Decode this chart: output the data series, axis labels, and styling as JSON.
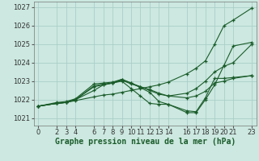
{
  "xlabel": "Graphe pression niveau de la mer (hPa)",
  "background_color": "#cce8e0",
  "grid_color": "#aacfc8",
  "line_color": "#1a5c2a",
  "xlim": [
    -0.5,
    23.5
  ],
  "ylim": [
    1020.6,
    1027.3
  ],
  "yticks": [
    1021,
    1022,
    1023,
    1024,
    1025,
    1026,
    1027
  ],
  "xticks": [
    0,
    2,
    3,
    4,
    6,
    7,
    8,
    9,
    10,
    11,
    12,
    13,
    14,
    16,
    17,
    18,
    19,
    20,
    21,
    23
  ],
  "lines": [
    {
      "x": [
        0,
        2,
        3,
        4,
        6,
        7,
        8,
        9,
        10,
        11,
        12,
        13,
        14,
        16,
        17,
        18,
        19,
        20,
        21,
        23
      ],
      "y": [
        1021.65,
        1021.8,
        1021.85,
        1021.95,
        1022.15,
        1022.25,
        1022.3,
        1022.4,
        1022.5,
        1022.6,
        1022.7,
        1022.8,
        1022.95,
        1023.4,
        1023.7,
        1024.1,
        1025.0,
        1026.0,
        1026.3,
        1026.95
      ]
    },
    {
      "x": [
        0,
        2,
        3,
        4,
        6,
        7,
        8,
        9,
        10,
        11,
        12,
        13,
        14,
        16,
        17,
        18,
        19,
        20,
        21,
        23
      ],
      "y": [
        1021.65,
        1021.8,
        1021.85,
        1022.0,
        1022.5,
        1022.8,
        1022.9,
        1023.1,
        1022.9,
        1022.7,
        1022.5,
        1022.3,
        1022.2,
        1022.35,
        1022.6,
        1023.0,
        1023.5,
        1023.8,
        1024.0,
        1025.0
      ]
    },
    {
      "x": [
        0,
        2,
        3,
        4,
        6,
        7,
        8,
        9,
        10,
        11,
        12,
        13,
        14,
        16,
        17,
        18,
        19,
        20,
        21,
        23
      ],
      "y": [
        1021.65,
        1021.8,
        1021.85,
        1022.0,
        1022.7,
        1022.8,
        1022.9,
        1023.05,
        1022.85,
        1022.7,
        1022.55,
        1022.35,
        1022.2,
        1022.1,
        1022.2,
        1022.45,
        1022.9,
        1023.0,
        1023.15,
        1023.3
      ]
    },
    {
      "x": [
        0,
        2,
        3,
        4,
        6,
        7,
        8,
        9,
        10,
        11,
        12,
        13,
        14,
        16,
        17,
        18,
        19,
        20,
        21,
        23
      ],
      "y": [
        1021.65,
        1021.85,
        1021.9,
        1022.05,
        1022.85,
        1022.9,
        1022.95,
        1023.1,
        1022.9,
        1022.65,
        1022.4,
        1021.9,
        1021.75,
        1021.4,
        1021.35,
        1022.1,
        1023.15,
        1023.15,
        1023.2,
        1023.3
      ]
    },
    {
      "x": [
        0,
        2,
        3,
        4,
        6,
        7,
        8,
        9,
        10,
        11,
        12,
        13,
        14,
        16,
        17,
        18,
        19,
        20,
        21,
        23
      ],
      "y": [
        1021.65,
        1021.8,
        1021.85,
        1022.0,
        1022.75,
        1022.85,
        1022.9,
        1023.0,
        1022.6,
        1022.2,
        1021.8,
        1021.75,
        1021.75,
        1021.3,
        1021.3,
        1022.0,
        1022.8,
        1023.85,
        1024.9,
        1025.1
      ]
    }
  ],
  "fontsize_xlabel": 7,
  "fontsize_tick": 6,
  "marker_size": 3.5,
  "linewidth": 0.8
}
